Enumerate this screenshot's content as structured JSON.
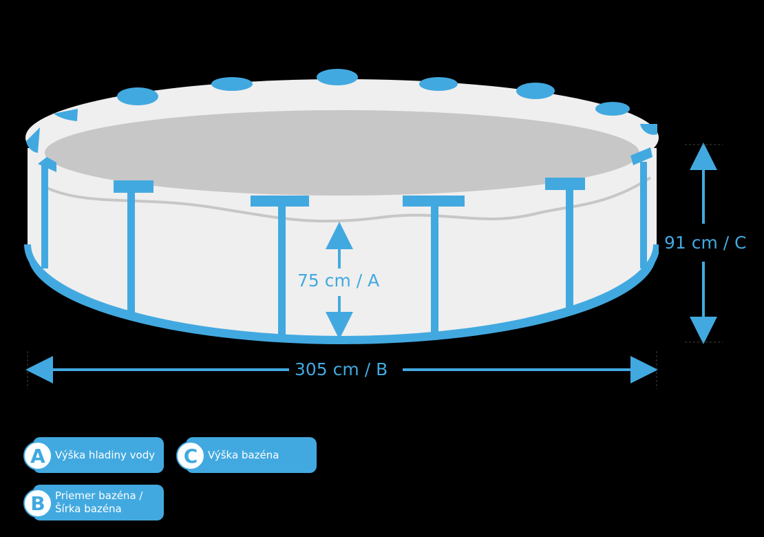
{
  "colors": {
    "accent": "#42a9e0",
    "pool_wall": "#efefef",
    "water": "#c8c7c8",
    "background": "#000000"
  },
  "dimensions": {
    "water_height": "75 cm / A",
    "diameter": "305 cm / B",
    "pool_height": "91 cm / C"
  },
  "legend": [
    {
      "letter": "A",
      "label": "Výška hladiny vody"
    },
    {
      "letter": "C",
      "label": "Výška bazéna"
    },
    {
      "letter": "B",
      "label": "Priemer bazéna / Šírka bazéna"
    }
  ]
}
